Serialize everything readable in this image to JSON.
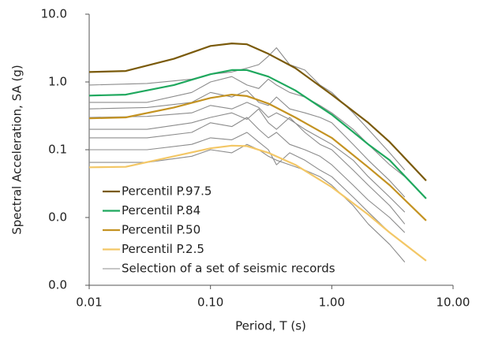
{
  "chart_data": {
    "type": "line",
    "x_label": "Period, T (s)",
    "y_label": "Spectral Acceleration, SA (g)",
    "x_log": true,
    "y_log": true,
    "grid": false,
    "legend": "lower-left",
    "xlim": [
      0.01,
      10
    ],
    "xticks": [
      {
        "value": 0.01,
        "label": "0.01"
      },
      {
        "value": 0.1,
        "label": "0.10"
      },
      {
        "value": 1,
        "label": "1.00"
      },
      {
        "value": 10,
        "label": "10.00"
      }
    ],
    "ylim": [
      0.001,
      10
    ],
    "yticks": [
      {
        "value": 10,
        "label": "10.0"
      },
      {
        "value": 1,
        "label": "1.0"
      },
      {
        "value": 0.1,
        "label": "0.1"
      },
      {
        "value": 0.01,
        "label": "0.0"
      },
      {
        "value": 0.001,
        "label": "0.0"
      }
    ],
    "x": [
      0.01,
      0.02,
      0.05,
      0.1,
      0.15,
      0.2,
      0.3,
      0.5,
      1,
      2,
      3,
      6
    ],
    "series": [
      {
        "name": "Percentil P.97.5",
        "color": "#7a5a0a",
        "values": [
          1.4,
          1.45,
          2.2,
          3.4,
          3.7,
          3.6,
          2.6,
          1.6,
          0.65,
          0.25,
          0.13,
          0.035
        ]
      },
      {
        "name": "Percentil P.84",
        "color": "#1fa85e",
        "values": [
          0.63,
          0.65,
          0.9,
          1.3,
          1.5,
          1.5,
          1.2,
          0.75,
          0.33,
          0.12,
          0.07,
          0.019
        ]
      },
      {
        "name": "Percentil P.50",
        "color": "#c49322",
        "values": [
          0.29,
          0.3,
          0.42,
          0.58,
          0.65,
          0.62,
          0.48,
          0.3,
          0.15,
          0.055,
          0.03,
          0.009
        ]
      },
      {
        "name": "Percentil P.2.5",
        "color": "#f3c766",
        "values": [
          0.055,
          0.056,
          0.08,
          0.105,
          0.115,
          0.113,
          0.09,
          0.06,
          0.028,
          0.011,
          0.006,
          0.0023
        ]
      }
    ],
    "records": {
      "name": "Selection of a set of seismic records",
      "color": "#8c8c8c",
      "x": [
        0.01,
        0.03,
        0.07,
        0.1,
        0.15,
        0.2,
        0.25,
        0.3,
        0.35,
        0.45,
        0.6,
        0.8,
        1,
        1.5,
        2,
        3,
        4
      ],
      "values": [
        [
          0.9,
          0.95,
          1.1,
          1.3,
          1.4,
          1.6,
          1.8,
          2.4,
          3.2,
          1.8,
          1.5,
          0.9,
          0.7,
          0.35,
          0.2,
          0.09,
          0.05
        ],
        [
          0.5,
          0.5,
          0.7,
          1.0,
          1.2,
          0.9,
          0.8,
          1.1,
          0.9,
          0.7,
          0.6,
          0.45,
          0.35,
          0.2,
          0.12,
          0.06,
          0.04
        ],
        [
          0.4,
          0.42,
          0.5,
          0.7,
          0.6,
          0.75,
          0.5,
          0.45,
          0.6,
          0.4,
          0.35,
          0.3,
          0.25,
          0.12,
          0.07,
          0.035,
          0.02
        ],
        [
          0.3,
          0.31,
          0.35,
          0.45,
          0.4,
          0.5,
          0.42,
          0.3,
          0.35,
          0.28,
          0.2,
          0.15,
          0.12,
          0.07,
          0.04,
          0.02,
          0.012
        ],
        [
          0.2,
          0.2,
          0.25,
          0.3,
          0.35,
          0.28,
          0.4,
          0.25,
          0.2,
          0.3,
          0.18,
          0.12,
          0.1,
          0.05,
          0.03,
          0.015,
          0.008
        ],
        [
          0.15,
          0.15,
          0.18,
          0.25,
          0.22,
          0.3,
          0.2,
          0.15,
          0.18,
          0.12,
          0.1,
          0.08,
          0.06,
          0.03,
          0.018,
          0.01,
          0.006
        ],
        [
          0.1,
          0.1,
          0.12,
          0.15,
          0.14,
          0.18,
          0.13,
          0.1,
          0.06,
          0.09,
          0.07,
          0.05,
          0.04,
          0.02,
          0.012,
          0.006,
          0.004
        ],
        [
          0.065,
          0.065,
          0.08,
          0.1,
          0.09,
          0.12,
          0.1,
          0.08,
          0.07,
          0.06,
          0.05,
          0.04,
          0.03,
          0.015,
          0.008,
          0.004,
          0.0022
        ]
      ]
    }
  }
}
